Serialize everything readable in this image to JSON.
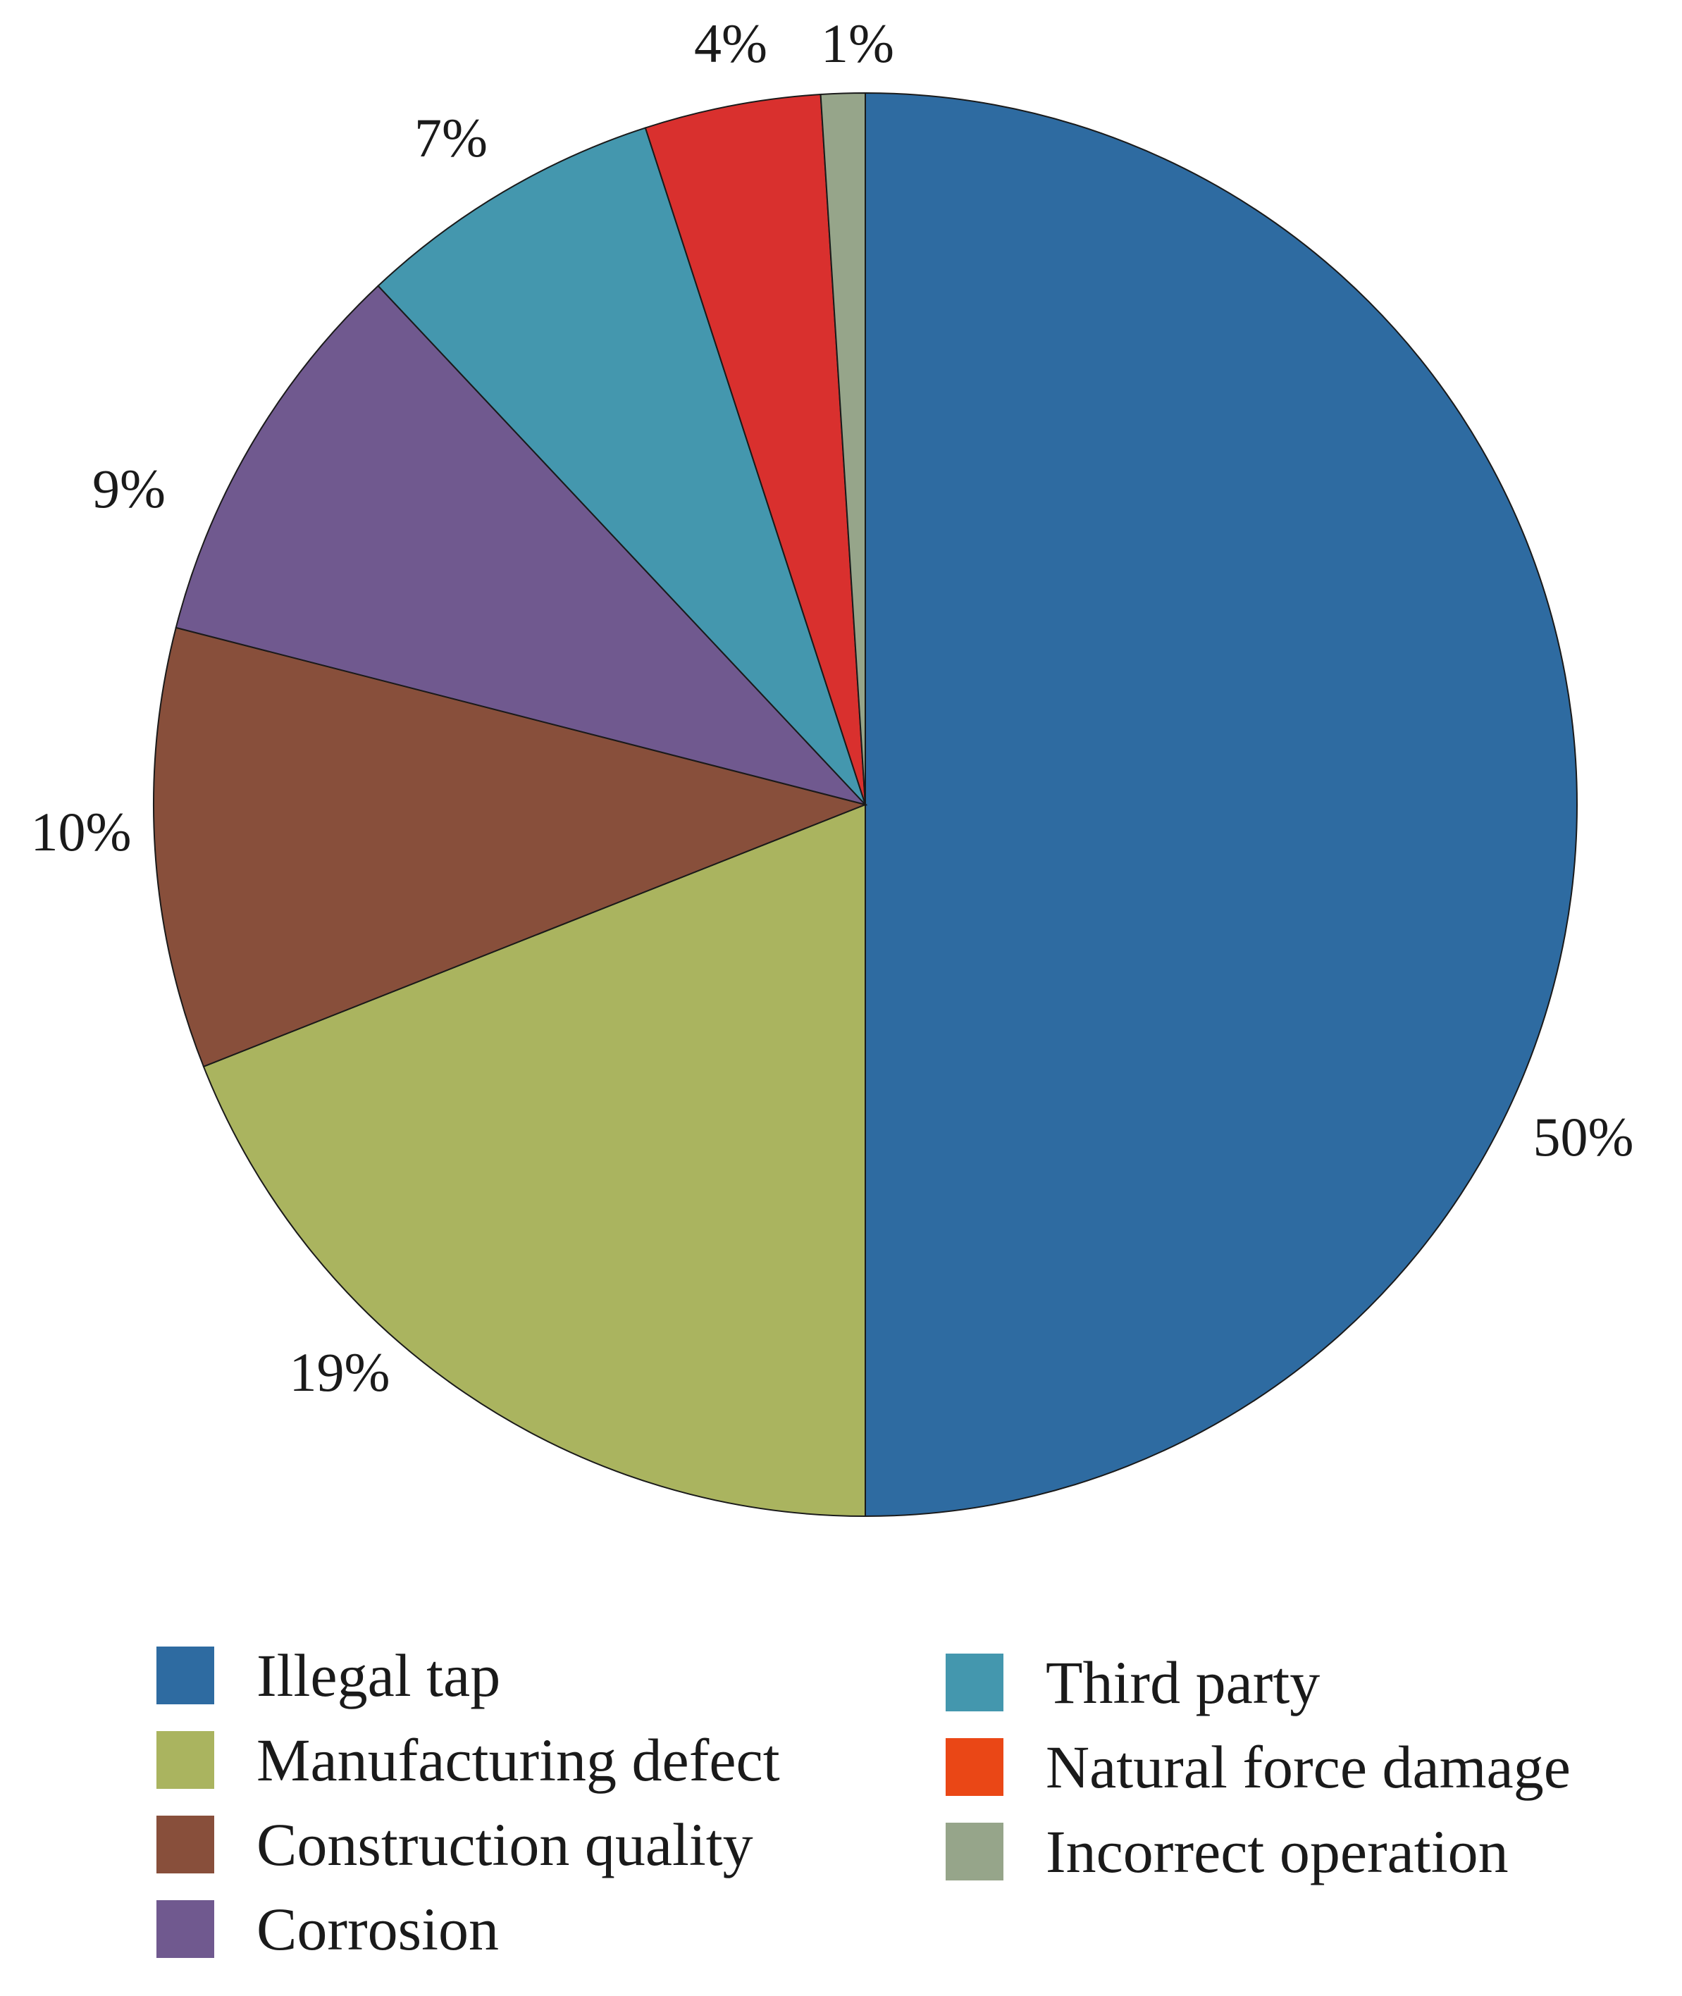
{
  "chart_data": {
    "type": "pie",
    "title": "",
    "start_angle_deg": 0,
    "direction": "clockwise",
    "slices": [
      {
        "label": "Illegal tap",
        "value": 50,
        "value_label": "50%",
        "color": "#2e6ba1"
      },
      {
        "label": "Manufacturing defect",
        "value": 19,
        "value_label": "19%",
        "color": "#aab45f"
      },
      {
        "label": "Construction quality",
        "value": 10,
        "value_label": "10%",
        "color": "#884f3b"
      },
      {
        "label": "Corrosion",
        "value": 9,
        "value_label": "9%",
        "color": "#70598f"
      },
      {
        "label": "Third party",
        "value": 7,
        "value_label": "7%",
        "color": "#4497ae"
      },
      {
        "label": "Natural force damage",
        "value": 4,
        "value_label": "4%",
        "color": "#d9302e"
      },
      {
        "label": "Incorrect operation",
        "value": 1,
        "value_label": "1%",
        "color": "#96a58a"
      }
    ],
    "legend": {
      "placement": "bottom",
      "columns": 2,
      "entries": [
        {
          "label": "Illegal tap",
          "color": "#2e6ba1"
        },
        {
          "label": "Manufacturing defect",
          "color": "#aab45f"
        },
        {
          "label": "Construction quality",
          "color": "#884f3b"
        },
        {
          "label": "Corrosion",
          "color": "#70598f"
        },
        {
          "label": "Third party",
          "color": "#4497ae"
        },
        {
          "label": "Natural force damage",
          "color": "#ea4716"
        },
        {
          "label": "Incorrect operation",
          "color": "#96a58a"
        }
      ]
    }
  }
}
